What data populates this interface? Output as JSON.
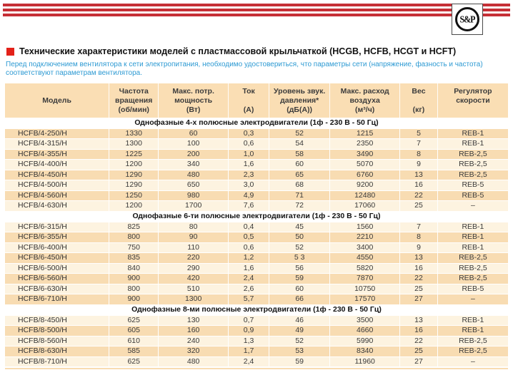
{
  "page": {
    "logo_text": "S&P",
    "title": "Технические характеристики моделей с пластмассовой крыльчаткой (HCGB, HCFB, HCGT и HCFT)",
    "note": "Перед подключением вентилятора к сети электропитания, необходимо удостовериться, что параметры сети (напряжение, фазность и частота) соответствуют параметрам вентилятора."
  },
  "colors": {
    "stripe_red": "#c63036",
    "square_red": "#e32119",
    "note_blue": "#2d9ad3",
    "header_bg": "#fadeb4",
    "row_dark": "#f8dcb2",
    "row_light": "#fdf3e0"
  },
  "table": {
    "columns": [
      {
        "lines": [
          "Модель"
        ],
        "width": 20.7
      },
      {
        "lines": [
          "Частота",
          "вращения",
          "(об/мин)"
        ],
        "width": 9.8
      },
      {
        "lines": [
          "Макс. потр.",
          "мощность",
          "(Вт)"
        ],
        "width": 13.9
      },
      {
        "lines": [
          "Ток",
          "",
          "(А)"
        ],
        "width": 8.1
      },
      {
        "lines": [
          "Уровень звук.",
          "давления*",
          "(дБ(А))"
        ],
        "width": 12.1
      },
      {
        "lines": [
          "Макс. расход",
          "воздуха",
          "(м³/ч)"
        ],
        "width": 13.9
      },
      {
        "lines": [
          "Вес",
          "",
          "(кг)"
        ],
        "width": 7.5
      },
      {
        "lines": [
          "Регулятор",
          "скорости"
        ],
        "width": 14.0
      }
    ],
    "sections": [
      {
        "title": "Однофазные 4-х полюсные электродвигатели (1ф - 230 В - 50 Гц)",
        "zebra_start_dark": true,
        "rows": [
          [
            "HCFB/4-250/H",
            "1330",
            "60",
            "0,3",
            "52",
            "1215",
            "5",
            "REB-1"
          ],
          [
            "HCFB/4-315/H",
            "1300",
            "100",
            "0,6",
            "54",
            "2350",
            "7",
            "REB-1"
          ],
          [
            "HCFB/4-355/H",
            "1225",
            "200",
            "1,0",
            "58",
            "3490",
            "8",
            "REB-2,5"
          ],
          [
            "HCFB/4-400/H",
            "1200",
            "340",
            "1,6",
            "60",
            "5070",
            "9",
            "REB-2,5"
          ],
          [
            "HCFB/4-450/H",
            "1290",
            "480",
            "2,3",
            "65",
            "6760",
            "13",
            "REB-2,5"
          ],
          [
            "HCFB/4-500/H",
            "1290",
            "650",
            "3,0",
            "68",
            "9200",
            "16",
            "REB-5"
          ],
          [
            "HCFB/4-560/H",
            "1250",
            "980",
            "4,9",
            "71",
            "12480",
            "22",
            "REB-5"
          ],
          [
            "HCFB/4-630/H",
            "1200",
            "1700",
            "7,6",
            "72",
            "17060",
            "25",
            "–"
          ]
        ]
      },
      {
        "title": "Однофазные 6-ти полюсные электродвигатели (1ф - 230 В - 50 Гц)",
        "zebra_start_dark": false,
        "rows": [
          [
            "HCFB/6-315/H",
            "825",
            "80",
            "0,4",
            "45",
            "1560",
            "7",
            "REB-1"
          ],
          [
            "HCFB/6-355/H",
            "800",
            "90",
            "0,5",
            "50",
            "2210",
            "8",
            "REB-1"
          ],
          [
            "HCFB/6-400/H",
            "750",
            "110",
            "0,6",
            "52",
            "3400",
            "9",
            "REB-1"
          ],
          [
            "HCFB/6-450/H",
            "835",
            "220",
            "1,2",
            "5 3",
            "4550",
            "13",
            "REB-2,5"
          ],
          [
            "HCFB/6-500/H",
            "840",
            "290",
            "1,6",
            "56",
            "5820",
            "16",
            "REB-2,5"
          ],
          [
            "HCFB/6-560/H",
            "900",
            "420",
            "2,4",
            "59",
            "7870",
            "22",
            "REB-2,5"
          ],
          [
            "HCFB/6-630/H",
            "800",
            "510",
            "2,6",
            "60",
            "10750",
            "25",
            "REB-5"
          ],
          [
            "HCFB/6-710/H",
            "900",
            "1300",
            "5,7",
            "66",
            "17570",
            "27",
            "–"
          ]
        ]
      },
      {
        "title": "Однофазные 8-ми полюсные электродвигатели (1ф - 230 В - 50 Гц)",
        "zebra_start_dark": false,
        "rows": [
          [
            "HCFB/8-450/H",
            "625",
            "130",
            "0,7",
            "46",
            "3500",
            "13",
            "REB-1"
          ],
          [
            "HCFB/8-500/H",
            "605",
            "160",
            "0,9",
            "49",
            "4660",
            "16",
            "REB-1"
          ],
          [
            "HCFB/8-560/H",
            "610",
            "240",
            "1,3",
            "52",
            "5990",
            "22",
            "REB-2,5"
          ],
          [
            "HCFB/8-630/H",
            "585",
            "320",
            "1,7",
            "53",
            "8340",
            "25",
            "REB-2,5"
          ],
          [
            "HCFB/8-710/H",
            "625",
            "480",
            "2,4",
            "59",
            "11960",
            "27",
            "–"
          ]
        ]
      }
    ]
  }
}
